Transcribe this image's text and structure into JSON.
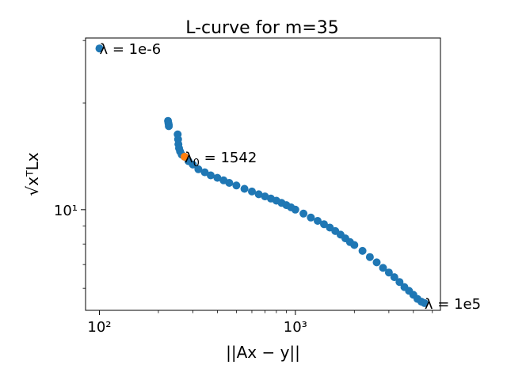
{
  "chart_data": {
    "type": "scatter",
    "title": "L-curve for m=35",
    "xlabel": "||Ax − y||",
    "ylabel": "√xᵀLx",
    "xscale": "log",
    "yscale": "log",
    "xlim": [
      85,
      5500
    ],
    "ylim": [
      5.2,
      30.5
    ],
    "xticks": [
      {
        "value": 100,
        "label": "10²"
      },
      {
        "value": 1000,
        "label": "10³"
      }
    ],
    "yticks": [
      {
        "value": 10,
        "label": "10¹"
      }
    ],
    "grid": false,
    "colors": {
      "series": "#1f77b4",
      "highlight": "#ff7f0e"
    },
    "series": [
      {
        "color": "#1f77b4",
        "points": [
          [
            100,
            28.5
          ],
          [
            224,
            17.8
          ],
          [
            225,
            17.55
          ],
          [
            226,
            17.35
          ],
          [
            226,
            17.2
          ],
          [
            251,
            16.3
          ],
          [
            252,
            15.8
          ],
          [
            253,
            15.3
          ],
          [
            255,
            14.9
          ],
          [
            258,
            14.6
          ],
          [
            263,
            14.3
          ],
          [
            272,
            14.1
          ],
          [
            285,
            13.7
          ],
          [
            300,
            13.4
          ],
          [
            320,
            13.0
          ],
          [
            345,
            12.75
          ],
          [
            370,
            12.5
          ],
          [
            400,
            12.3
          ],
          [
            430,
            12.1
          ],
          [
            460,
            11.9
          ],
          [
            500,
            11.7
          ],
          [
            550,
            11.45
          ],
          [
            600,
            11.25
          ],
          [
            650,
            11.05
          ],
          [
            700,
            10.9
          ],
          [
            750,
            10.75
          ],
          [
            800,
            10.6
          ],
          [
            850,
            10.45
          ],
          [
            900,
            10.3
          ],
          [
            950,
            10.15
          ],
          [
            1000,
            10.0
          ],
          [
            1100,
            9.75
          ],
          [
            1200,
            9.5
          ],
          [
            1300,
            9.3
          ],
          [
            1400,
            9.1
          ],
          [
            1500,
            8.9
          ],
          [
            1600,
            8.7
          ],
          [
            1700,
            8.5
          ],
          [
            1800,
            8.3
          ],
          [
            1900,
            8.1
          ],
          [
            2000,
            7.95
          ],
          [
            2200,
            7.65
          ],
          [
            2400,
            7.35
          ],
          [
            2600,
            7.1
          ],
          [
            2800,
            6.85
          ],
          [
            3000,
            6.65
          ],
          [
            3200,
            6.45
          ],
          [
            3400,
            6.25
          ],
          [
            3600,
            6.05
          ],
          [
            3800,
            5.9
          ],
          [
            4000,
            5.75
          ],
          [
            4200,
            5.6
          ],
          [
            4400,
            5.5
          ],
          [
            4560,
            5.45
          ]
        ]
      },
      {
        "color": "#ff7f0e",
        "points": [
          [
            272,
            14.1
          ]
        ]
      }
    ],
    "annotations": [
      {
        "x": 100,
        "y": 28.5,
        "label": "λ = 1e-6"
      },
      {
        "x": 272,
        "y": 14.1,
        "label": "λ",
        "sub": "0",
        "rest": " = 1542"
      },
      {
        "x": 4560,
        "y": 5.45,
        "label": "λ = 1e5"
      }
    ]
  }
}
